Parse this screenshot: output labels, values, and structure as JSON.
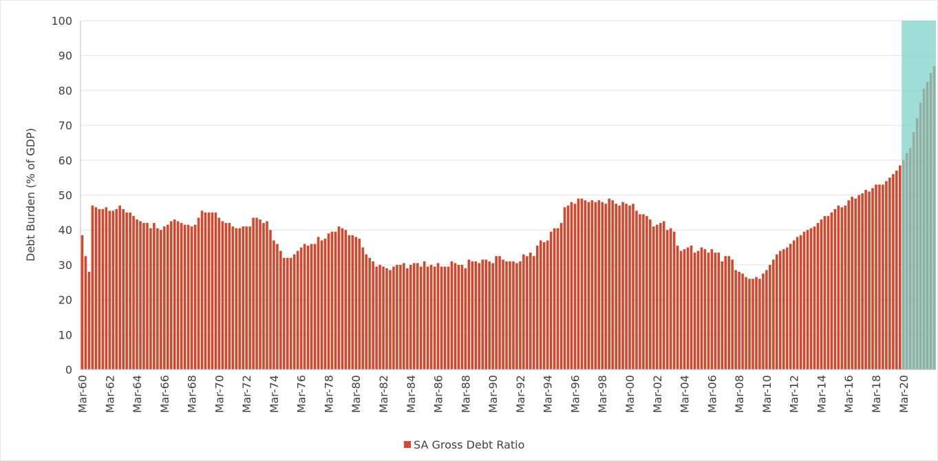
{
  "chart_data": {
    "type": "bar",
    "y_label": "Debt Burden (% of GDP)",
    "ylim": [
      0,
      100
    ],
    "yticks": [
      0,
      10,
      20,
      30,
      40,
      50,
      60,
      70,
      80,
      90,
      100
    ],
    "grid": true,
    "legend": "bottom",
    "highlight_from": "Mar-20",
    "highlight_color": "#7fd1cb",
    "categories": [
      "Mar-60",
      null,
      null,
      null,
      null,
      null,
      null,
      null,
      "Mar-62",
      null,
      null,
      null,
      null,
      null,
      null,
      null,
      "Mar-64",
      null,
      null,
      null,
      null,
      null,
      null,
      null,
      "Mar-66",
      null,
      null,
      null,
      null,
      null,
      null,
      null,
      "Mar-68",
      null,
      null,
      null,
      null,
      null,
      null,
      null,
      "Mar-70",
      null,
      null,
      null,
      null,
      null,
      null,
      null,
      "Mar-72",
      null,
      null,
      null,
      null,
      null,
      null,
      null,
      "Mar-74",
      null,
      null,
      null,
      null,
      null,
      null,
      null,
      "Mar-76",
      null,
      null,
      null,
      null,
      null,
      null,
      null,
      "Mar-78",
      null,
      null,
      null,
      null,
      null,
      null,
      null,
      "Mar-80",
      null,
      null,
      null,
      null,
      null,
      null,
      null,
      "Mar-82",
      null,
      null,
      null,
      null,
      null,
      null,
      null,
      "Mar-84",
      null,
      null,
      null,
      null,
      null,
      null,
      null,
      "Mar-86",
      null,
      null,
      null,
      null,
      null,
      null,
      null,
      "Mar-88",
      null,
      null,
      null,
      null,
      null,
      null,
      null,
      "Mar-90",
      null,
      null,
      null,
      null,
      null,
      null,
      null,
      "Mar-92",
      null,
      null,
      null,
      null,
      null,
      null,
      null,
      "Mar-94",
      null,
      null,
      null,
      null,
      null,
      null,
      null,
      "Mar-96",
      null,
      null,
      null,
      null,
      null,
      null,
      null,
      "Mar-98",
      null,
      null,
      null,
      null,
      null,
      null,
      null,
      "Mar-00",
      null,
      null,
      null,
      null,
      null,
      null,
      null,
      "Mar-02",
      null,
      null,
      null,
      null,
      null,
      null,
      null,
      "Mar-04",
      null,
      null,
      null,
      null,
      null,
      null,
      null,
      "Mar-06",
      null,
      null,
      null,
      null,
      null,
      null,
      null,
      "Mar-08",
      null,
      null,
      null,
      null,
      null,
      null,
      null,
      "Mar-10",
      null,
      null,
      null,
      null,
      null,
      null,
      null,
      "Mar-12",
      null,
      null,
      null,
      null,
      null,
      null,
      null,
      "Mar-14",
      null,
      null,
      null,
      null,
      null,
      null,
      null,
      "Mar-16",
      null,
      null,
      null,
      null,
      null,
      null,
      null,
      "Mar-18",
      null,
      null,
      null,
      null,
      null,
      null,
      null,
      "Mar-20",
      null,
      null,
      null,
      null,
      null,
      null,
      null,
      null,
      null
    ],
    "series": [
      {
        "name": "SA Gross Debt Ratio",
        "color": "#d6462b",
        "values": [
          38.5,
          32.5,
          28,
          47,
          46.5,
          46,
          46,
          46.5,
          45.5,
          45.5,
          46,
          47,
          46,
          45,
          45,
          44,
          43,
          42.5,
          42,
          42,
          40.5,
          42,
          40.5,
          40,
          41,
          41.5,
          42.5,
          43,
          42.5,
          42,
          41.5,
          41.5,
          41,
          41.5,
          43.5,
          45.5,
          45,
          45,
          45,
          45,
          43.5,
          42.5,
          42,
          42,
          41,
          40.5,
          40.5,
          41,
          41,
          41,
          43.5,
          43.5,
          43,
          42,
          42.5,
          40,
          37,
          36,
          34,
          32,
          32,
          32,
          33,
          34,
          35,
          36,
          35.5,
          36,
          36,
          38,
          37,
          37.5,
          39,
          39.5,
          39.5,
          41,
          40.5,
          40,
          38.5,
          38.5,
          38,
          37.5,
          35,
          33,
          32,
          31,
          29.5,
          30,
          29.5,
          29,
          28.5,
          29.5,
          30,
          30,
          30.5,
          29,
          30,
          30.5,
          30.5,
          29.5,
          31,
          29.5,
          30,
          29.5,
          30.5,
          29.5,
          29.5,
          29.5,
          31,
          30.5,
          30,
          30,
          29,
          31.5,
          31,
          31,
          30.5,
          31.5,
          31.5,
          31,
          30.5,
          32.5,
          32.5,
          31.5,
          31,
          31,
          31,
          30.5,
          31,
          33,
          32.5,
          33.5,
          32.5,
          35.5,
          37,
          36.5,
          37,
          39.5,
          40.5,
          40.5,
          42,
          46.5,
          47,
          48,
          47.5,
          49,
          49,
          48.5,
          48,
          48.5,
          48,
          48.5,
          48,
          47.5,
          49,
          48.5,
          47.5,
          47,
          48,
          47.5,
          47,
          47.5,
          45.5,
          44.5,
          44.5,
          44,
          43,
          41,
          41.5,
          42,
          42.5,
          40,
          40.5,
          39.5,
          35.5,
          34,
          34.5,
          35,
          35.5,
          33.5,
          34,
          35,
          34.5,
          33.5,
          34.5,
          33.5,
          33.5,
          31,
          32.5,
          32.5,
          31.5,
          28.5,
          28,
          27.5,
          26.5,
          26,
          26,
          26.5,
          26,
          27.5,
          28.5,
          30,
          31.5,
          33,
          34,
          34.5,
          35,
          36,
          37,
          38,
          38.5,
          39.5,
          40,
          40.5,
          41,
          42,
          43,
          44,
          44,
          45,
          46,
          47,
          46.5,
          47,
          48.5,
          49.5,
          49,
          50,
          50.5,
          51.5,
          51,
          52,
          53,
          53,
          53,
          54,
          55,
          56,
          57,
          58.5,
          60,
          62,
          63.5,
          68,
          72,
          76.5,
          80.5,
          82.5,
          85,
          87
        ]
      }
    ]
  }
}
